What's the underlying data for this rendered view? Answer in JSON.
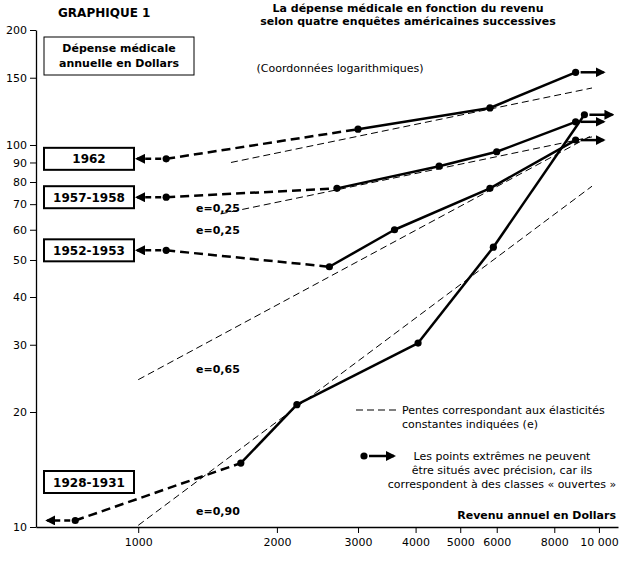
{
  "chart_data": {
    "type": "line",
    "title": "GRAPHIQUE 1",
    "subtitle": [
      "La dépense médicale en fonction du revenu",
      "selon quatre enquêtes américaines successives"
    ],
    "y_label": [
      "Dépense médicale",
      "annuelle en Dollars"
    ],
    "x_label": "Revenu annuel en Dollars",
    "annotation": "(Coordonnées logarithmiques)",
    "log": true,
    "grid": false,
    "xlim": [
      600,
      11000
    ],
    "xticks": [
      1000,
      2000,
      3000,
      4000,
      5000,
      6000,
      8000,
      {
        "value": 10000,
        "label": "10 000"
      }
    ],
    "ylim": [
      10,
      200
    ],
    "yticks": [
      10,
      20,
      30,
      40,
      50,
      60,
      70,
      80,
      90,
      100,
      150,
      200
    ],
    "series": [
      {
        "name": "1962",
        "color": "#000000",
        "line_style": "solid",
        "marker": "circle",
        "x": [
          1150,
          3000,
          5800,
          8900
        ],
        "values": [
          92,
          110,
          125,
          155
        ]
      },
      {
        "name": "1957-1958",
        "color": "#000000",
        "line_style": "solid",
        "marker": "circle",
        "x": [
          1150,
          2700,
          4500,
          6000,
          8900
        ],
        "values": [
          73,
          77,
          88,
          96,
          115
        ]
      },
      {
        "name": "1952-1953",
        "color": "#000000",
        "line_style": "solid",
        "marker": "circle",
        "x": [
          1150,
          2600,
          3600,
          5800,
          8900
        ],
        "values": [
          53,
          48,
          60,
          77,
          103
        ]
      },
      {
        "name": "1928-1931",
        "color": "#000000",
        "line_style": "solid",
        "marker": "circle",
        "x": [
          730,
          1670,
          2210,
          4050,
          5900,
          9300
        ],
        "values": [
          10.4,
          14.7,
          20.9,
          30.3,
          54,
          120
        ]
      }
    ],
    "reference_lines": [
      {
        "label": "e=0,25",
        "line_style": "dashed",
        "x": [
          1590,
          9660
        ],
        "values": [
          90,
          141
        ]
      },
      {
        "label": "e=0,25",
        "line_style": "dashed",
        "x": [
          1510,
          9660
        ],
        "values": [
          66,
          105
        ]
      },
      {
        "label": "e=0,65",
        "line_style": "dashed",
        "x": [
          1000,
          9660
        ],
        "values": [
          24.3,
          106
        ]
      },
      {
        "label": "e=0,90",
        "line_style": "dashed",
        "x": [
          1000,
          9660
        ],
        "values": [
          10.1,
          78
        ]
      }
    ],
    "notes": [
      [
        "Pentes correspondant aux élasticités",
        "constantes indiquées (e)"
      ],
      [
        "Les points extrêmes ne peuvent",
        "être situés avec précision, car ils",
        "correspondent à des classes « ouvertes »"
      ]
    ]
  }
}
